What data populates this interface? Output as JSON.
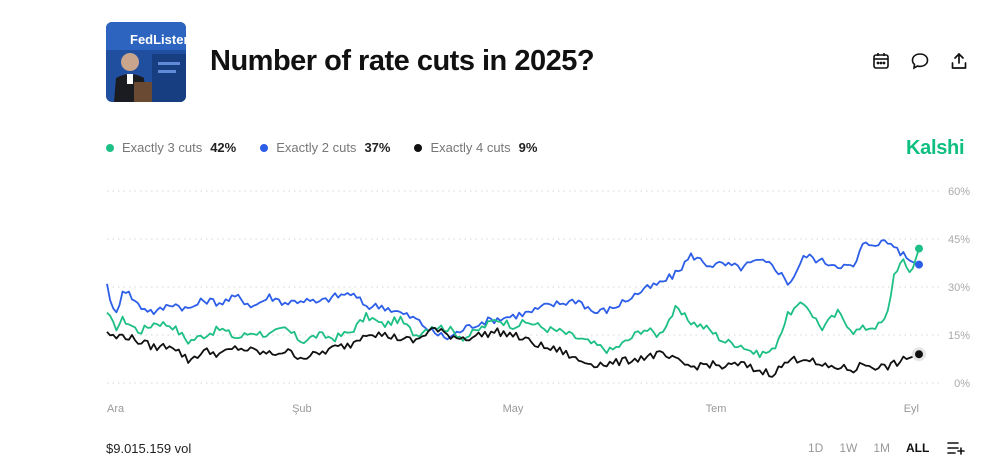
{
  "market": {
    "title": "Number of rate cuts in 2025?",
    "thumbnail_caption": "FedListens"
  },
  "toolbar": {
    "icons": [
      "calendar-icon",
      "comment-icon",
      "share-icon"
    ]
  },
  "brand": {
    "name": "Kalshi",
    "color": "#0fbf7f"
  },
  "legend": [
    {
      "label": "Exactly 3 cuts",
      "value": "42%",
      "color": "#1dbf84"
    },
    {
      "label": "Exactly 2 cuts",
      "value": "37%",
      "color": "#2d5ee8"
    },
    {
      "label": "Exactly 4 cuts",
      "value": "9%",
      "color": "#111111"
    }
  ],
  "footer": {
    "volume": "$9.015.159 vol",
    "ranges": [
      {
        "label": "1D",
        "active": false
      },
      {
        "label": "1W",
        "active": false
      },
      {
        "label": "1M",
        "active": false
      },
      {
        "label": "ALL",
        "active": true
      }
    ]
  },
  "chart_data": {
    "type": "line",
    "ylim": [
      0,
      60
    ],
    "y_ticks": [
      0,
      15,
      30,
      45,
      60
    ],
    "y_tick_labels": [
      "0%",
      "15%",
      "30%",
      "45%",
      "60%"
    ],
    "x_tick_labels": [
      "Ara",
      "Şub",
      "May",
      "Tem",
      "Eyl"
    ],
    "x_tick_positions": [
      0,
      0.24,
      0.5,
      0.75,
      1.0
    ],
    "x_domain": [
      0,
      1
    ],
    "grid": true,
    "series": [
      {
        "name": "Exactly 3 cuts",
        "color": "#1dbf84",
        "x": [
          0,
          0.01,
          0.02,
          0.04,
          0.06,
          0.08,
          0.1,
          0.12,
          0.14,
          0.16,
          0.18,
          0.2,
          0.22,
          0.24,
          0.26,
          0.28,
          0.3,
          0.32,
          0.34,
          0.36,
          0.38,
          0.4,
          0.42,
          0.44,
          0.46,
          0.48,
          0.5,
          0.52,
          0.54,
          0.56,
          0.58,
          0.6,
          0.62,
          0.64,
          0.66,
          0.68,
          0.7,
          0.72,
          0.74,
          0.76,
          0.78,
          0.8,
          0.82,
          0.84,
          0.86,
          0.88,
          0.9,
          0.92,
          0.93,
          0.95,
          0.96,
          0.97,
          0.98,
          0.99,
          1.0
        ],
        "values": [
          22,
          17,
          20,
          16,
          19,
          18,
          13,
          15,
          17,
          14,
          16,
          15,
          17,
          13,
          15,
          14,
          16,
          21,
          18,
          20,
          15,
          18,
          17,
          14,
          17,
          20,
          18,
          19,
          17,
          16,
          14,
          12,
          10,
          13,
          17,
          15,
          23,
          19,
          17,
          13,
          12,
          9,
          10,
          22,
          25,
          17,
          22,
          16,
          17,
          18,
          20,
          35,
          38,
          34,
          42
        ]
      },
      {
        "name": "Exactly 2 cuts",
        "color": "#2d5ee8",
        "x": [
          0,
          0.01,
          0.02,
          0.04,
          0.06,
          0.08,
          0.1,
          0.12,
          0.14,
          0.16,
          0.18,
          0.2,
          0.22,
          0.24,
          0.26,
          0.28,
          0.3,
          0.32,
          0.34,
          0.36,
          0.38,
          0.4,
          0.42,
          0.44,
          0.46,
          0.48,
          0.5,
          0.52,
          0.54,
          0.56,
          0.58,
          0.6,
          0.62,
          0.64,
          0.66,
          0.68,
          0.7,
          0.72,
          0.74,
          0.76,
          0.78,
          0.8,
          0.82,
          0.84,
          0.86,
          0.88,
          0.9,
          0.92,
          0.93,
          0.95,
          0.96,
          0.97,
          0.98,
          0.99,
          1.0
        ],
        "values": [
          31,
          20,
          30,
          24,
          22,
          25,
          23,
          26,
          25,
          27,
          24,
          27,
          25,
          26,
          25,
          27,
          28,
          24,
          24,
          22,
          20,
          16,
          14,
          17,
          19,
          20,
          21,
          22,
          24,
          25,
          26,
          22,
          23,
          26,
          29,
          31,
          34,
          40,
          37,
          37,
          36,
          38,
          37,
          31,
          40,
          38,
          37,
          36,
          43,
          44,
          44,
          43,
          40,
          38,
          37
        ]
      },
      {
        "name": "Exactly 4 cuts",
        "color": "#111111",
        "x": [
          0,
          0.01,
          0.02,
          0.04,
          0.06,
          0.08,
          0.1,
          0.12,
          0.14,
          0.16,
          0.18,
          0.2,
          0.22,
          0.24,
          0.26,
          0.28,
          0.3,
          0.32,
          0.34,
          0.36,
          0.38,
          0.4,
          0.42,
          0.44,
          0.46,
          0.48,
          0.5,
          0.52,
          0.54,
          0.56,
          0.58,
          0.6,
          0.62,
          0.64,
          0.66,
          0.68,
          0.7,
          0.72,
          0.74,
          0.76,
          0.78,
          0.8,
          0.82,
          0.84,
          0.86,
          0.88,
          0.9,
          0.92,
          0.93,
          0.95,
          0.96,
          0.97,
          0.98,
          0.99,
          1.0
        ],
        "values": [
          16,
          14,
          15,
          13,
          11,
          12,
          7,
          10,
          9,
          11,
          10,
          9,
          10,
          8,
          9,
          11,
          12,
          16,
          15,
          14,
          13,
          17,
          15,
          14,
          15,
          16,
          15,
          13,
          11,
          10,
          7,
          6,
          6,
          7,
          8,
          9,
          7,
          5,
          6,
          5,
          6,
          4,
          3,
          7,
          8,
          5,
          5,
          4,
          6,
          5,
          5,
          6,
          7,
          8,
          9
        ]
      }
    ]
  }
}
